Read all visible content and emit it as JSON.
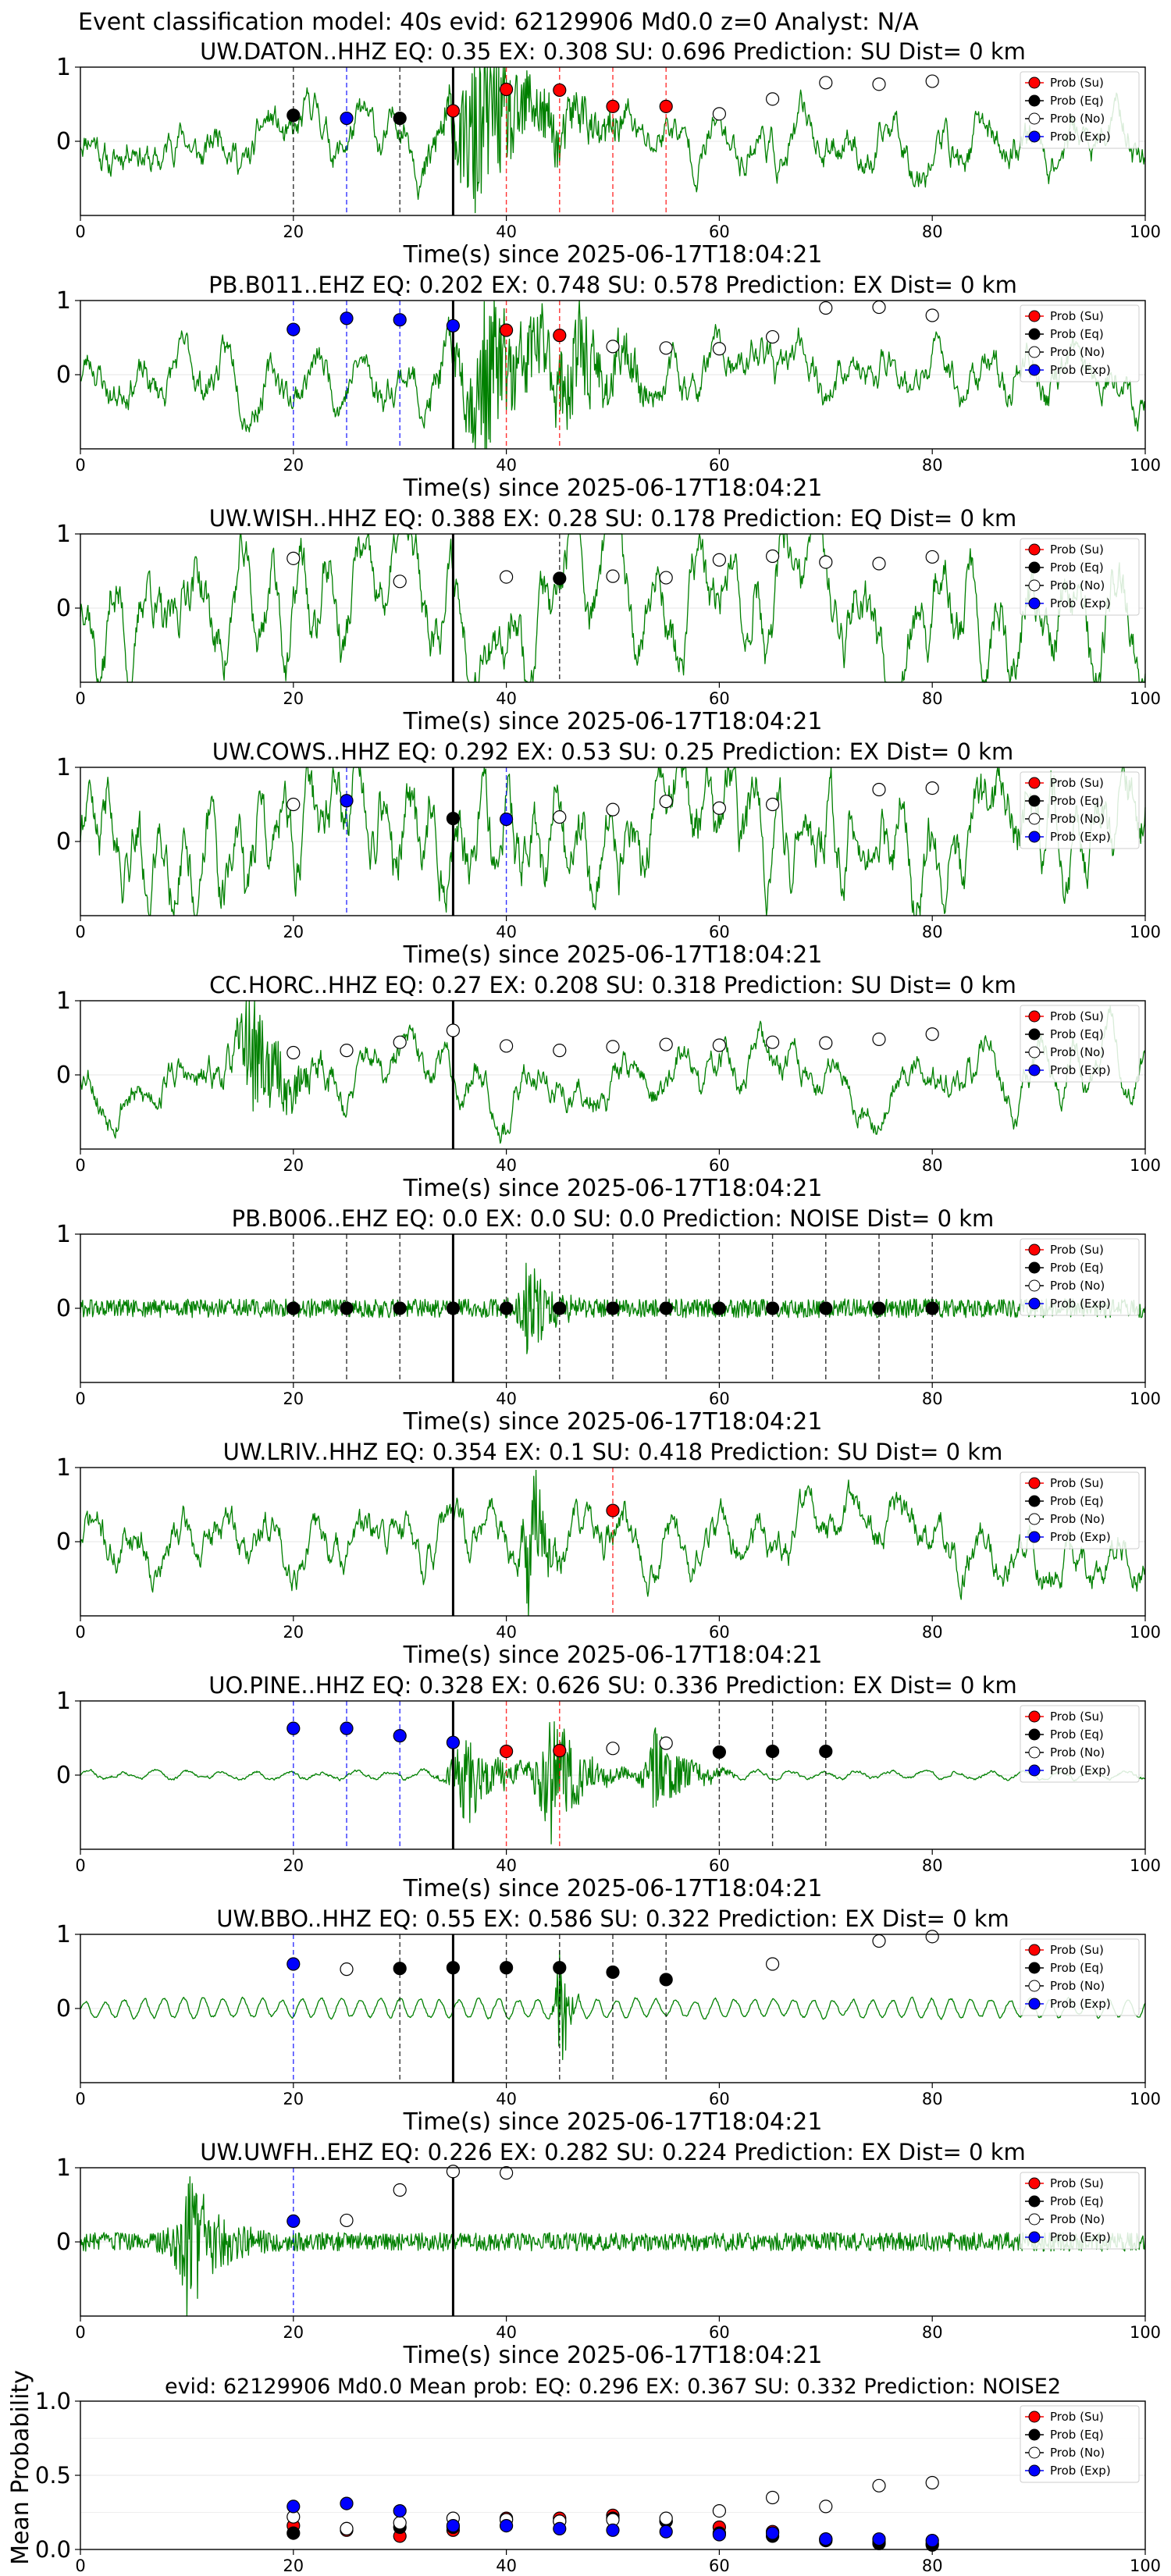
{
  "figure": {
    "suptitle": "Event classification model: 40s evid: 62129906 Md0.0 z=0 Analyst: N/A",
    "xlabel": "Time(s) since 2025-06-17T18:04:21",
    "legend_labels": [
      "Prob (Su)",
      "Prob (Eq)",
      "Prob (No)",
      "Prob (Exp)"
    ],
    "colors": {
      "Su": "#ff0000",
      "Eq": "#000000",
      "No": "#ffffff",
      "Exp": "#0000ff",
      "waveform": "#008000",
      "event_line": "#000000"
    }
  },
  "chart_data": [
    {
      "type": "line",
      "title": "UW.DATON..HHZ   EQ: 0.35   EX: 0.308  SU: 0.696   Prediction: SU    Dist= 0 km",
      "xlim": [
        0,
        100
      ],
      "ylim": [
        -1,
        1
      ],
      "x_ticks": [
        0,
        20,
        40,
        60,
        80,
        100
      ],
      "y_ticks": [
        0,
        1
      ],
      "event_time": 35,
      "waveform": {
        "style": "medium",
        "bursts": [
          {
            "t": 37,
            "amp": 1.0,
            "w": 6
          }
        ],
        "seed": 11
      },
      "points": [
        {
          "class": "Eq",
          "x": 20,
          "y": 0.35
        },
        {
          "class": "Exp",
          "x": 25,
          "y": 0.31
        },
        {
          "class": "Eq",
          "x": 30,
          "y": 0.31
        },
        {
          "class": "Su",
          "x": 35,
          "y": 0.41
        },
        {
          "class": "Su",
          "x": 40,
          "y": 0.7
        },
        {
          "class": "Su",
          "x": 45,
          "y": 0.69
        },
        {
          "class": "Su",
          "x": 50,
          "y": 0.47
        },
        {
          "class": "Su",
          "x": 55,
          "y": 0.47
        },
        {
          "class": "No",
          "x": 60,
          "y": 0.37
        },
        {
          "class": "No",
          "x": 65,
          "y": 0.57
        },
        {
          "class": "No",
          "x": 70,
          "y": 0.79
        },
        {
          "class": "No",
          "x": 75,
          "y": 0.77
        },
        {
          "class": "No",
          "x": 80,
          "y": 0.81
        }
      ]
    },
    {
      "type": "line",
      "title": "PB.B011..EHZ   EQ: 0.202  EX: 0.748  SU: 0.578   Prediction: EX    Dist= 0 km",
      "xlim": [
        0,
        100
      ],
      "ylim": [
        -1,
        1
      ],
      "x_ticks": [
        0,
        20,
        40,
        60,
        80,
        100
      ],
      "y_ticks": [
        0,
        1
      ],
      "event_time": 35,
      "waveform": {
        "style": "medium",
        "bursts": [
          {
            "t": 38,
            "amp": 0.9,
            "w": 6
          },
          {
            "t": 46,
            "amp": 0.5,
            "w": 3
          }
        ],
        "seed": 23
      },
      "points": [
        {
          "class": "Exp",
          "x": 20,
          "y": 0.61
        },
        {
          "class": "Exp",
          "x": 25,
          "y": 0.76
        },
        {
          "class": "Exp",
          "x": 30,
          "y": 0.74
        },
        {
          "class": "Exp",
          "x": 35,
          "y": 0.66
        },
        {
          "class": "Su",
          "x": 40,
          "y": 0.6
        },
        {
          "class": "Su",
          "x": 45,
          "y": 0.53
        },
        {
          "class": "No",
          "x": 50,
          "y": 0.38
        },
        {
          "class": "No",
          "x": 55,
          "y": 0.36
        },
        {
          "class": "No",
          "x": 60,
          "y": 0.35
        },
        {
          "class": "No",
          "x": 65,
          "y": 0.51
        },
        {
          "class": "No",
          "x": 70,
          "y": 0.9
        },
        {
          "class": "No",
          "x": 75,
          "y": 0.91
        },
        {
          "class": "No",
          "x": 80,
          "y": 0.8
        }
      ]
    },
    {
      "type": "line",
      "title": "UW.WISH..HHZ   EQ: 0.388  EX: 0.28  SU: 0.178   Prediction: EQ    Dist= 0 km",
      "xlim": [
        0,
        100
      ],
      "ylim": [
        -1,
        1
      ],
      "x_ticks": [
        0,
        20,
        40,
        60,
        80,
        100
      ],
      "y_ticks": [
        0,
        1
      ],
      "event_time": 35,
      "waveform": {
        "style": "lowfreq",
        "bursts": [],
        "seed": 37
      },
      "points": [
        {
          "class": "No",
          "x": 20,
          "y": 0.67
        },
        {
          "class": "No",
          "x": 30,
          "y": 0.36
        },
        {
          "class": "No",
          "x": 40,
          "y": 0.42
        },
        {
          "class": "Eq",
          "x": 45,
          "y": 0.4
        },
        {
          "class": "No",
          "x": 50,
          "y": 0.43
        },
        {
          "class": "No",
          "x": 55,
          "y": 0.41
        },
        {
          "class": "No",
          "x": 60,
          "y": 0.65
        },
        {
          "class": "No",
          "x": 65,
          "y": 0.7
        },
        {
          "class": "No",
          "x": 70,
          "y": 0.62
        },
        {
          "class": "No",
          "x": 75,
          "y": 0.6
        },
        {
          "class": "No",
          "x": 80,
          "y": 0.69
        }
      ]
    },
    {
      "type": "line",
      "title": "UW.COWS..HHZ   EQ: 0.292  EX: 0.53  SU: 0.25   Prediction: EX    Dist= 0 km",
      "xlim": [
        0,
        100
      ],
      "ylim": [
        -1,
        1
      ],
      "x_ticks": [
        0,
        20,
        40,
        60,
        80,
        100
      ],
      "y_ticks": [
        0,
        1
      ],
      "event_time": 35,
      "waveform": {
        "style": "busy",
        "bursts": [],
        "seed": 41
      },
      "points": [
        {
          "class": "No",
          "x": 20,
          "y": 0.5
        },
        {
          "class": "Exp",
          "x": 25,
          "y": 0.55
        },
        {
          "class": "Eq",
          "x": 35,
          "y": 0.31
        },
        {
          "class": "Exp",
          "x": 40,
          "y": 0.3
        },
        {
          "class": "No",
          "x": 45,
          "y": 0.33
        },
        {
          "class": "No",
          "x": 50,
          "y": 0.43
        },
        {
          "class": "No",
          "x": 55,
          "y": 0.54
        },
        {
          "class": "No",
          "x": 60,
          "y": 0.45
        },
        {
          "class": "No",
          "x": 65,
          "y": 0.5
        },
        {
          "class": "No",
          "x": 75,
          "y": 0.7
        },
        {
          "class": "No",
          "x": 80,
          "y": 0.72
        }
      ]
    },
    {
      "type": "line",
      "title": "CC.HORC..HHZ   EQ: 0.27  EX: 0.208  SU: 0.318   Prediction: SU    Dist= 0 km",
      "xlim": [
        0,
        100
      ],
      "ylim": [
        -1,
        1
      ],
      "x_ticks": [
        0,
        20,
        40,
        60,
        80,
        100
      ],
      "y_ticks": [
        0,
        1
      ],
      "event_time": 35,
      "waveform": {
        "style": "lowfreq-small",
        "bursts": [
          {
            "t": 16,
            "amp": 0.8,
            "w": 3
          }
        ],
        "seed": 53
      },
      "points": [
        {
          "class": "No",
          "x": 20,
          "y": 0.3
        },
        {
          "class": "No",
          "x": 25,
          "y": 0.33
        },
        {
          "class": "No",
          "x": 30,
          "y": 0.44
        },
        {
          "class": "No",
          "x": 35,
          "y": 0.6
        },
        {
          "class": "No",
          "x": 40,
          "y": 0.39
        },
        {
          "class": "No",
          "x": 45,
          "y": 0.33
        },
        {
          "class": "No",
          "x": 50,
          "y": 0.38
        },
        {
          "class": "No",
          "x": 55,
          "y": 0.41
        },
        {
          "class": "No",
          "x": 60,
          "y": 0.4
        },
        {
          "class": "No",
          "x": 65,
          "y": 0.44
        },
        {
          "class": "No",
          "x": 70,
          "y": 0.43
        },
        {
          "class": "No",
          "x": 75,
          "y": 0.48
        },
        {
          "class": "No",
          "x": 80,
          "y": 0.55
        }
      ]
    },
    {
      "type": "line",
      "title": "PB.B006..EHZ   EQ: 0.0  EX: 0.0  SU: 0.0   Prediction: NOISE    Dist= 0 km",
      "xlim": [
        0,
        100
      ],
      "ylim": [
        -1,
        1
      ],
      "x_ticks": [
        0,
        20,
        40,
        60,
        80,
        100
      ],
      "y_ticks": [
        0,
        1
      ],
      "event_time": 35,
      "waveform": {
        "style": "flat",
        "bursts": [
          {
            "t": 42,
            "amp": 0.6,
            "w": 2
          }
        ],
        "seed": 61
      },
      "points": [
        {
          "class": "Eq",
          "x": 20,
          "y": 0.0
        },
        {
          "class": "Eq",
          "x": 25,
          "y": 0.0
        },
        {
          "class": "Eq",
          "x": 30,
          "y": 0.0
        },
        {
          "class": "Eq",
          "x": 35,
          "y": 0.0
        },
        {
          "class": "Eq",
          "x": 40,
          "y": 0.0
        },
        {
          "class": "Eq",
          "x": 45,
          "y": 0.0
        },
        {
          "class": "Eq",
          "x": 50,
          "y": 0.0
        },
        {
          "class": "Eq",
          "x": 55,
          "y": 0.0
        },
        {
          "class": "Eq",
          "x": 60,
          "y": 0.0
        },
        {
          "class": "Eq",
          "x": 65,
          "y": 0.0
        },
        {
          "class": "Eq",
          "x": 70,
          "y": 0.0
        },
        {
          "class": "Eq",
          "x": 75,
          "y": 0.0
        },
        {
          "class": "Eq",
          "x": 80,
          "y": 0.0
        }
      ]
    },
    {
      "type": "line",
      "title": "UW.LRIV..HHZ   EQ: 0.354  EX: 0.1  SU: 0.418   Prediction: SU    Dist= 0 km",
      "xlim": [
        0,
        100
      ],
      "ylim": [
        -1,
        1
      ],
      "x_ticks": [
        0,
        20,
        40,
        60,
        80,
        100
      ],
      "y_ticks": [
        0,
        1
      ],
      "event_time": 35,
      "waveform": {
        "style": "medium",
        "bursts": [
          {
            "t": 42,
            "amp": 1.0,
            "w": 1.5
          }
        ],
        "seed": 71
      },
      "points": [
        {
          "class": "Su",
          "x": 50,
          "y": 0.42
        }
      ]
    },
    {
      "type": "line",
      "title": "UO.PINE..HHZ   EQ: 0.328  EX: 0.626  SU: 0.336   Prediction: EX    Dist= 0 km",
      "xlim": [
        0,
        100
      ],
      "ylim": [
        -1,
        1
      ],
      "x_ticks": [
        0,
        20,
        40,
        60,
        80,
        100
      ],
      "y_ticks": [
        0,
        1
      ],
      "event_time": 35,
      "waveform": {
        "style": "quiet",
        "bursts": [
          {
            "t": 36,
            "amp": 0.7,
            "w": 3
          },
          {
            "t": 44,
            "amp": 0.95,
            "w": 3
          },
          {
            "t": 54,
            "amp": 0.6,
            "w": 3
          }
        ],
        "seed": 83
      },
      "points": [
        {
          "class": "Exp",
          "x": 20,
          "y": 0.63
        },
        {
          "class": "Exp",
          "x": 25,
          "y": 0.63
        },
        {
          "class": "Exp",
          "x": 30,
          "y": 0.53
        },
        {
          "class": "Exp",
          "x": 35,
          "y": 0.44
        },
        {
          "class": "Su",
          "x": 40,
          "y": 0.32
        },
        {
          "class": "Su",
          "x": 45,
          "y": 0.33
        },
        {
          "class": "No",
          "x": 50,
          "y": 0.36
        },
        {
          "class": "No",
          "x": 55,
          "y": 0.43
        },
        {
          "class": "Eq",
          "x": 60,
          "y": 0.31
        },
        {
          "class": "Eq",
          "x": 65,
          "y": 0.32
        },
        {
          "class": "Eq",
          "x": 70,
          "y": 0.32
        }
      ]
    },
    {
      "type": "line",
      "title": "UW.BBO..HHZ   EQ: 0.55  EX: 0.586  SU: 0.322   Prediction: EX    Dist= 0 km",
      "xlim": [
        0,
        100
      ],
      "ylim": [
        -1,
        1
      ],
      "x_ticks": [
        0,
        20,
        40,
        60,
        80,
        100
      ],
      "y_ticks": [
        0,
        1
      ],
      "event_time": 35,
      "waveform": {
        "style": "swell",
        "bursts": [
          {
            "t": 45,
            "amp": 1.0,
            "w": 0.8
          }
        ],
        "seed": 97
      },
      "points": [
        {
          "class": "Exp",
          "x": 20,
          "y": 0.6
        },
        {
          "class": "No",
          "x": 25,
          "y": 0.53
        },
        {
          "class": "Eq",
          "x": 30,
          "y": 0.54
        },
        {
          "class": "Eq",
          "x": 35,
          "y": 0.55
        },
        {
          "class": "Eq",
          "x": 40,
          "y": 0.55
        },
        {
          "class": "Eq",
          "x": 45,
          "y": 0.55
        },
        {
          "class": "Eq",
          "x": 50,
          "y": 0.49
        },
        {
          "class": "Eq",
          "x": 55,
          "y": 0.39
        },
        {
          "class": "No",
          "x": 65,
          "y": 0.6
        },
        {
          "class": "No",
          "x": 75,
          "y": 0.91
        },
        {
          "class": "No",
          "x": 80,
          "y": 0.97
        }
      ]
    },
    {
      "type": "line",
      "title": "UW.UWFH..EHZ   EQ: 0.226  EX: 0.282  SU: 0.224   Prediction: EX    Dist= 0 km",
      "xlim": [
        0,
        100
      ],
      "ylim": [
        -1,
        1
      ],
      "x_ticks": [
        0,
        20,
        40,
        60,
        80,
        100
      ],
      "y_ticks": [
        0,
        1
      ],
      "event_time": 35,
      "waveform": {
        "style": "flat",
        "bursts": [
          {
            "t": 10,
            "amp": 0.9,
            "w": 3
          }
        ],
        "seed": 103
      },
      "points": [
        {
          "class": "Exp",
          "x": 20,
          "y": 0.28
        },
        {
          "class": "No",
          "x": 25,
          "y": 0.29
        },
        {
          "class": "No",
          "x": 30,
          "y": 0.7
        },
        {
          "class": "No",
          "x": 35,
          "y": 0.95
        },
        {
          "class": "No",
          "x": 40,
          "y": 0.93
        }
      ]
    },
    {
      "type": "scatter",
      "title": "evid: 62129906   Md0.0   Mean prob:   EQ: 0.296  EX: 0.367  SU: 0.332   Prediction: NOISE2",
      "ylabel": "Mean Probability",
      "xlim": [
        0,
        100
      ],
      "ylim": [
        0,
        1
      ],
      "x_ticks": [
        0,
        20,
        40,
        60,
        80,
        100
      ],
      "y_ticks": [
        0.0,
        0.5,
        1.0
      ],
      "y_tick_labels": [
        "0.0",
        "0.5",
        "1.0"
      ],
      "x": [
        20,
        25,
        30,
        35,
        40,
        45,
        50,
        55,
        60,
        65,
        70,
        75,
        80
      ],
      "series": [
        {
          "name": "Prob (Su)",
          "class": "Su",
          "values": [
            0.16,
            0.13,
            0.09,
            0.13,
            0.21,
            0.21,
            0.23,
            0.19,
            0.15,
            0.12,
            0.07,
            0.05,
            0.04
          ]
        },
        {
          "name": "Prob (Eq)",
          "class": "Eq",
          "values": [
            0.11,
            0.14,
            0.15,
            0.15,
            0.2,
            0.19,
            0.21,
            0.19,
            0.11,
            0.09,
            0.06,
            0.04,
            0.03
          ]
        },
        {
          "name": "Prob (No)",
          "class": "No",
          "values": [
            0.22,
            0.14,
            0.18,
            0.21,
            0.2,
            0.19,
            0.2,
            0.21,
            0.26,
            0.35,
            0.29,
            0.43,
            0.45
          ]
        },
        {
          "name": "Prob (Exp)",
          "class": "Exp",
          "values": [
            0.29,
            0.31,
            0.26,
            0.16,
            0.16,
            0.14,
            0.13,
            0.12,
            0.1,
            0.11,
            0.07,
            0.07,
            0.06
          ]
        }
      ]
    }
  ]
}
